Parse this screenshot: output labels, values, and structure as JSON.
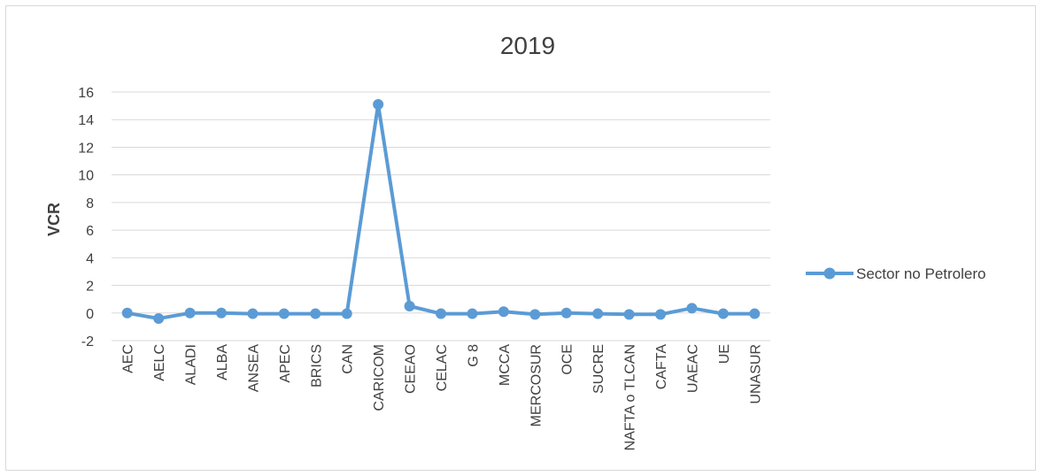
{
  "chart_data": {
    "type": "line",
    "title": "2019",
    "xlabel": "",
    "ylabel": "VCR",
    "ylim": [
      -2,
      16
    ],
    "yticks": [
      -2,
      0,
      2,
      4,
      6,
      8,
      10,
      12,
      14,
      16
    ],
    "grid": true,
    "legend_position": "right",
    "categories": [
      "AEC",
      "AELC",
      "ALADI",
      "ALBA",
      "ANSEA",
      "APEC",
      "BRICS",
      "CAN",
      "CARICOM",
      "CEEAO",
      "CELAC",
      "G 8",
      "MCCA",
      "MERCOSUR",
      "OCE",
      "SUCRE",
      "NAFTA o TLCAN",
      "CAFTA",
      "UAEAC",
      "UE",
      "UNASUR"
    ],
    "series": [
      {
        "name": "Sector no Petrolero",
        "color": "#5b9bd5",
        "values": [
          0.0,
          -0.4,
          0.0,
          0.0,
          -0.05,
          -0.05,
          -0.05,
          -0.05,
          15.1,
          0.5,
          -0.05,
          -0.05,
          0.1,
          -0.1,
          0.0,
          -0.05,
          -0.1,
          -0.1,
          0.35,
          -0.05,
          -0.05
        ]
      }
    ]
  }
}
